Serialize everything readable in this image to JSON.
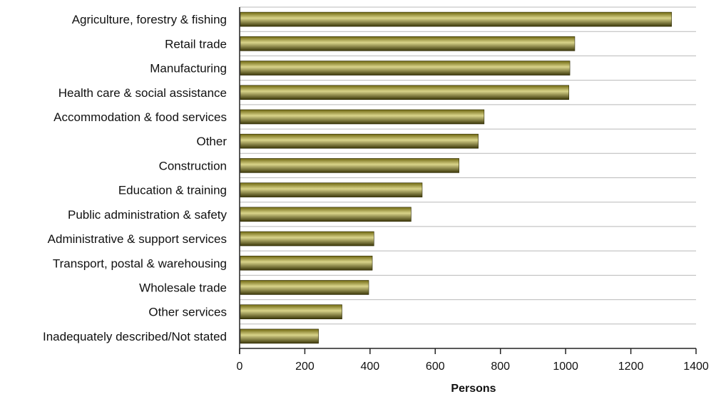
{
  "chart_data": {
    "type": "bar",
    "orientation": "horizontal",
    "categories": [
      "Agriculture, forestry & fishing",
      "Retail trade",
      "Manufacturing",
      "Health care & social assistance",
      "Accommodation & food services",
      "Other",
      "Construction",
      "Education & training",
      "Public administration & safety",
      "Administrative & support services",
      "Transport, postal & warehousing",
      "Wholesale trade",
      "Other services",
      "Inadequately described/Not stated"
    ],
    "values": [
      1325,
      1028,
      1013,
      1010,
      750,
      732,
      673,
      560,
      526,
      412,
      407,
      396,
      314,
      242
    ],
    "xlabel": "Persons",
    "ylabel": "",
    "xlim": [
      0,
      1400
    ],
    "xticks": [
      "0",
      "200",
      "400",
      "600",
      "800",
      "1000",
      "1200",
      "1400"
    ],
    "grid": "horizontal lines between categories",
    "bar_color": "#6f6710",
    "bar_highlight_color": "#d9d48a"
  }
}
